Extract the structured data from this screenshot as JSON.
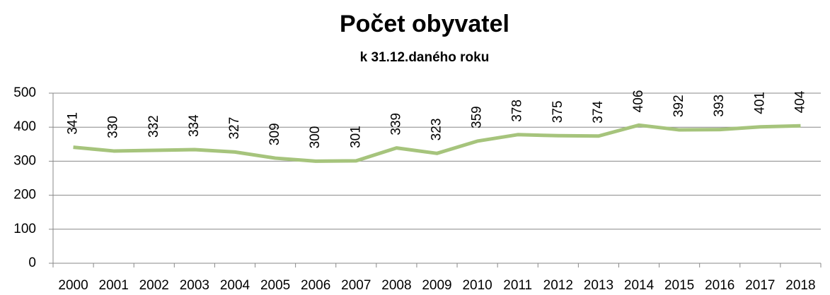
{
  "chart_data": {
    "type": "line",
    "title": "Počet obyvatel",
    "subtitle": "k 31.12.daného roku",
    "categories": [
      "2000",
      "2001",
      "2002",
      "2003",
      "2004",
      "2005",
      "2006",
      "2007",
      "2008",
      "2009",
      "2010",
      "2011",
      "2012",
      "2013",
      "2014",
      "2015",
      "2016",
      "2017",
      "2018"
    ],
    "values": [
      341,
      330,
      332,
      334,
      327,
      309,
      300,
      301,
      339,
      323,
      359,
      378,
      375,
      374,
      406,
      392,
      393,
      401,
      404
    ],
    "color": "#a6c47c",
    "ylim": [
      0,
      500
    ],
    "yticks": [
      0,
      100,
      200,
      300,
      400,
      500
    ],
    "grid": true
  }
}
